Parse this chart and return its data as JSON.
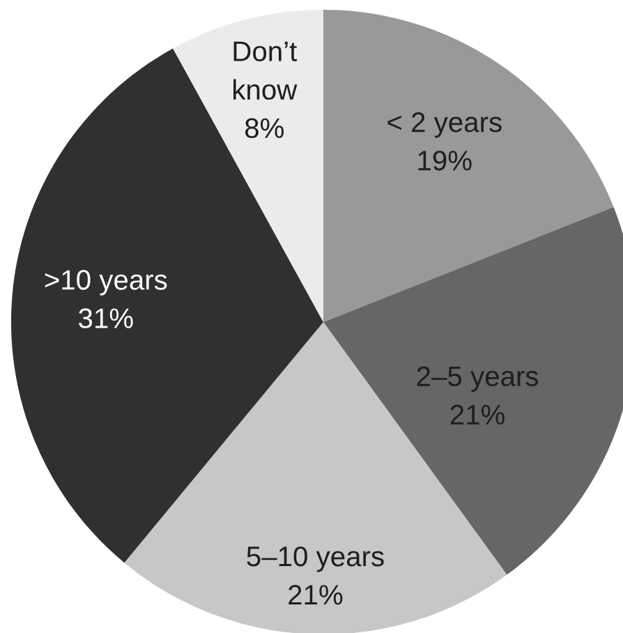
{
  "chart_data": {
    "type": "pie",
    "categories": [
      "< 2 years",
      "2–5 years",
      "5–10 years",
      ">10 years",
      "Don’t\nknow"
    ],
    "values": [
      19,
      21,
      21,
      31,
      8
    ],
    "value_labels": [
      "19%",
      "21%",
      "21%",
      "31%",
      "8%"
    ],
    "colors": [
      "#999999",
      "#666666",
      "#c6c7c6",
      "#303030",
      "#ebebeb"
    ],
    "legend": false
  }
}
